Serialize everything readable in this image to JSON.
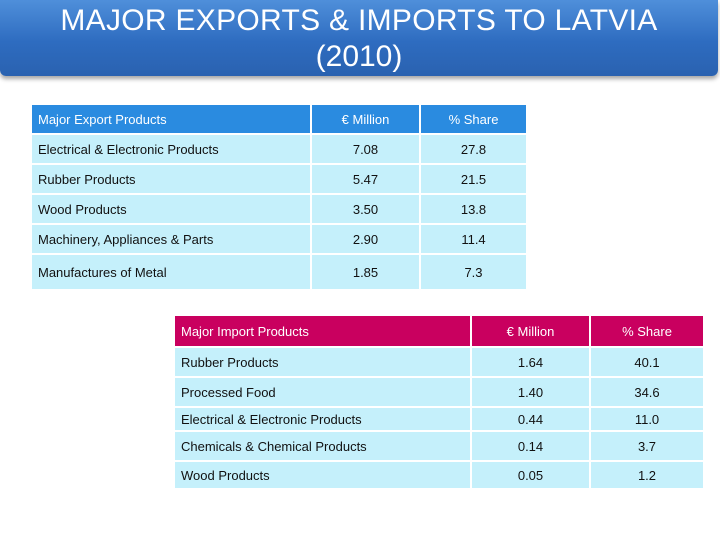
{
  "title": {
    "line1": "MAJOR EXPORTS & IMPORTS TO LATVIA",
    "line2": "(2010)"
  },
  "exports": {
    "headers": [
      "Major Export Products",
      "€ Million",
      "% Share"
    ],
    "rows": [
      [
        "Electrical & Electronic Products",
        "7.08",
        "27.8"
      ],
      [
        "Rubber Products",
        "5.47",
        "21.5"
      ],
      [
        "Wood Products",
        "3.50",
        "13.8"
      ],
      [
        "Machinery, Appliances & Parts",
        "2.90",
        "11.4"
      ],
      [
        "Manufactures of Metal",
        "1.85",
        "7.3"
      ]
    ]
  },
  "imports": {
    "headers": [
      "Major Import Products",
      "€ Million",
      "% Share"
    ],
    "rows": [
      [
        "Rubber Products",
        "1.64",
        "40.1"
      ],
      [
        "Processed Food",
        "1.40",
        "34.6"
      ],
      [
        "Electrical & Electronic Products",
        "0.44",
        "11.0"
      ],
      [
        "Chemicals & Chemical Products",
        "0.14",
        "3.7"
      ],
      [
        "Wood Products",
        "0.05",
        "1.2"
      ]
    ]
  },
  "colors": {
    "title_bg": "#2e6cc0",
    "export_header": "#2a8be0",
    "import_header": "#c9005f",
    "row_bg": "#c5f0fb"
  }
}
